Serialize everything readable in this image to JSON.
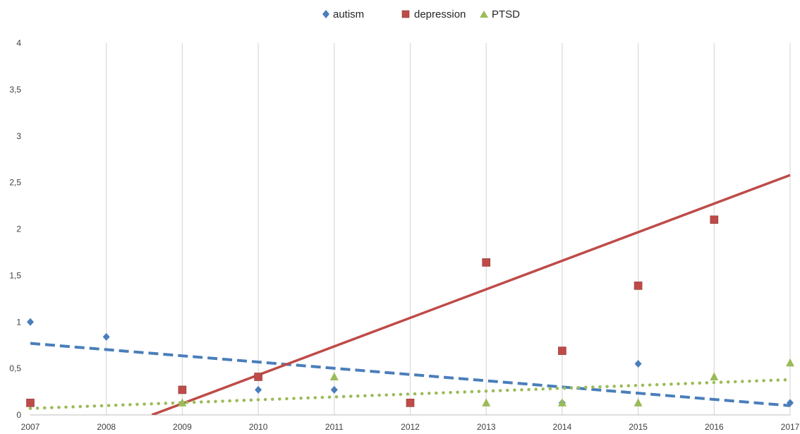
{
  "chart_data": {
    "type": "scatter",
    "x": [
      2007,
      2008,
      2009,
      2010,
      2011,
      2012,
      2013,
      2014,
      2015,
      2016,
      2017
    ],
    "xlim": [
      2007,
      2017
    ],
    "ylim": [
      0,
      4
    ],
    "y_ticks": [
      0,
      0.5,
      1,
      1.5,
      2,
      2.5,
      3,
      3.5,
      4
    ],
    "y_tick_labels": [
      "0",
      "0,5",
      "1",
      "1,5",
      "2",
      "2,5",
      "3",
      "3,5",
      "4"
    ],
    "x_tick_labels": [
      "2007",
      "2008",
      "2009",
      "2010",
      "2011",
      "2012",
      "2013",
      "2014",
      "2015",
      "2016",
      "2017"
    ],
    "grid": "vertical",
    "legend_position": "top",
    "series": [
      {
        "name": "autism",
        "marker": "diamond",
        "color": "#4a7ebb",
        "points": [
          [
            2007,
            1.0
          ],
          [
            2008,
            0.84
          ],
          [
            2010,
            0.27
          ],
          [
            2011,
            0.27
          ],
          [
            2014,
            0.13
          ],
          [
            2015,
            0.55
          ],
          [
            2017,
            0.13
          ]
        ],
        "trendline": {
          "style": "dashed",
          "from": [
            2007,
            0.77
          ],
          "to": [
            2017,
            0.1
          ]
        }
      },
      {
        "name": "depression",
        "marker": "square",
        "color": "#be4b48",
        "points": [
          [
            2007,
            0.13
          ],
          [
            2009,
            0.27
          ],
          [
            2010,
            0.41
          ],
          [
            2012,
            0.13
          ],
          [
            2013,
            1.64
          ],
          [
            2014,
            0.69
          ],
          [
            2015,
            1.39
          ],
          [
            2016,
            2.1
          ]
        ],
        "trendline": {
          "style": "solid",
          "from": [
            2008.6,
            0.0
          ],
          "to": [
            2017,
            2.58
          ]
        }
      },
      {
        "name": "PTSD",
        "marker": "triangle",
        "color": "#9bbb59",
        "points": [
          [
            2009,
            0.13
          ],
          [
            2011,
            0.41
          ],
          [
            2013,
            0.13
          ],
          [
            2014,
            0.13
          ],
          [
            2015,
            0.13
          ],
          [
            2016,
            0.41
          ],
          [
            2017,
            0.56
          ]
        ],
        "trendline": {
          "style": "dotted",
          "from": [
            2007,
            0.07
          ],
          "to": [
            2017,
            0.38
          ]
        }
      }
    ]
  }
}
